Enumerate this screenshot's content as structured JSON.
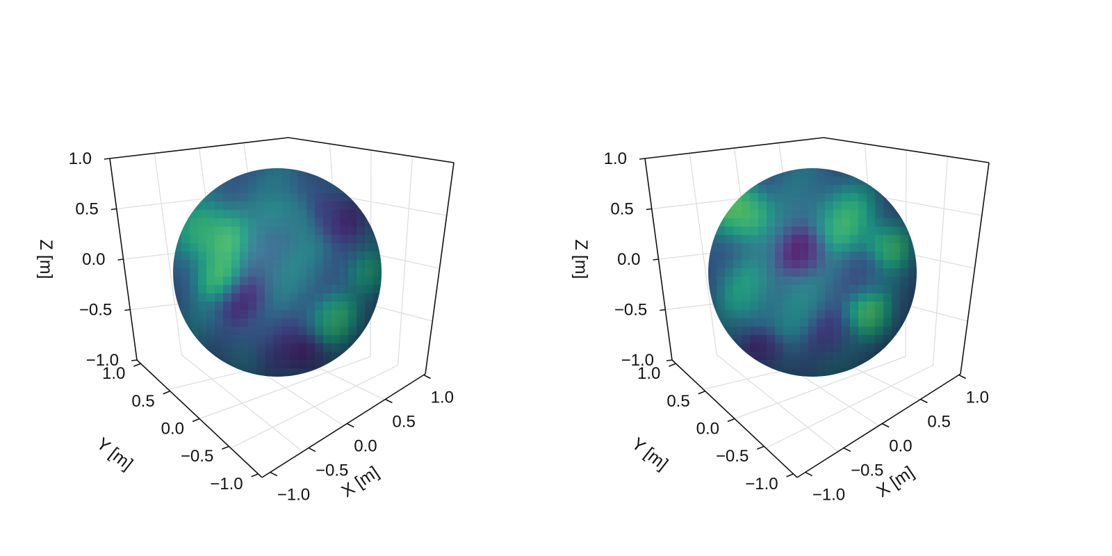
{
  "chart_data": [
    {
      "type": "surface3d",
      "shape": "sphere",
      "colormap": "viridis",
      "xlabel": "X [m]",
      "ylabel": "Y [m]",
      "zlabel": "Z [m]",
      "xlim": [
        -1.0,
        1.0
      ],
      "ylim": [
        -1.0,
        1.0
      ],
      "zlim": [
        -1.0,
        1.0
      ],
      "x_ticks": [
        "−1.0",
        "−0.5",
        "0.0",
        "0.5",
        "1.0"
      ],
      "y_ticks": [
        "−1.0",
        "−0.5",
        "0.0",
        "0.5",
        "1.0"
      ],
      "z_ticks": [
        "−1.0",
        "−0.5",
        "0.0",
        "0.5",
        "1.0"
      ],
      "grid": true
    },
    {
      "type": "surface3d",
      "shape": "sphere",
      "colormap": "viridis",
      "xlabel": "X [m]",
      "ylabel": "Y [m]",
      "zlabel": "Z [m]",
      "xlim": [
        -1.0,
        1.0
      ],
      "ylim": [
        -1.0,
        1.0
      ],
      "zlim": [
        -1.0,
        1.0
      ],
      "x_ticks": [
        "−1.0",
        "−0.5",
        "0.0",
        "0.5",
        "1.0"
      ],
      "y_ticks": [
        "−1.0",
        "−0.5",
        "0.0",
        "0.5",
        "1.0"
      ],
      "z_ticks": [
        "−1.0",
        "−0.5",
        "0.0",
        "0.5",
        "1.0"
      ],
      "grid": true
    }
  ]
}
